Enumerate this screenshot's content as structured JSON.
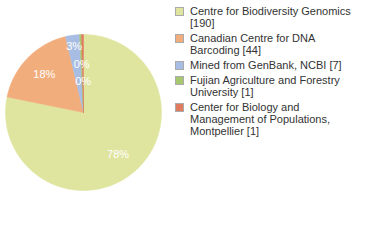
{
  "chart_data": {
    "type": "pie",
    "categories": [
      "Centre for Biodiversity Genomics [190]",
      "Canadian Centre for DNA Barcoding [44]",
      "Mined from GenBank, NCBI [7]",
      "Fujian Agriculture and Forestry University [1]",
      "Center for Biology and Management of Populations, Montpellier [1]"
    ],
    "values": [
      78.2,
      18.1,
      2.9,
      0.4,
      0.4
    ],
    "value_labels": [
      "78%",
      "18%",
      "3%",
      "0%",
      "0%"
    ],
    "colors": [
      "#dfe49f",
      "#f2ad7c",
      "#a8bde3",
      "#a7c76f",
      "#e07b5f"
    ],
    "data_labels": true,
    "legend": "right"
  }
}
